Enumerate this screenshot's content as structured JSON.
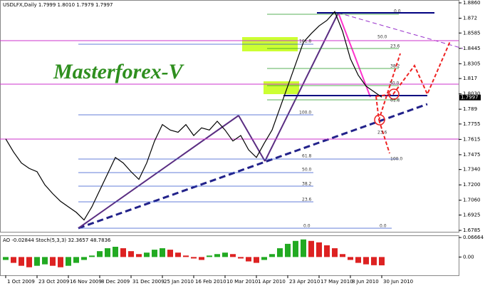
{
  "chart_data": {
    "type": "line",
    "title": "USDLFX,Daily  1.7999 1.8010 1.7979 1.7997",
    "watermark": "Masterforex-V",
    "categories": [
      "1 Oct 2009",
      null,
      null,
      null,
      "23 Oct 2009",
      null,
      null,
      null,
      "16 Nov 2009",
      null,
      null,
      null,
      "8 Dec 2009",
      null,
      null,
      null,
      "31 Dec 2009",
      null,
      null,
      null,
      "25 Jan 2010",
      null,
      null,
      null,
      "16 Feb 2010",
      null,
      null,
      null,
      "10 Mar 2010",
      null,
      null,
      null,
      "1 Apr 2010",
      null,
      null,
      null,
      "23 Apr 2010",
      null,
      null,
      null,
      "17 May 2010",
      null,
      null,
      null,
      "8 Jun 2010",
      null,
      null,
      null,
      "30 Jun 2010"
    ],
    "series": [
      {
        "name": "USDLFX",
        "color": "#000000",
        "values": [
          1.762,
          1.75,
          1.74,
          1.735,
          1.732,
          1.72,
          1.712,
          1.705,
          1.7,
          1.695,
          1.688,
          1.7,
          1.715,
          1.73,
          1.745,
          1.74,
          1.732,
          1.725,
          1.74,
          1.76,
          1.775,
          1.77,
          1.768,
          1.775,
          1.765,
          1.772,
          1.77,
          1.778,
          1.77,
          1.76,
          1.765,
          1.752,
          1.745,
          1.758,
          1.77,
          1.79,
          1.81,
          1.83,
          1.85,
          1.858,
          1.865,
          1.87,
          1.878,
          1.86,
          1.835,
          1.82,
          1.81,
          1.805,
          1.8
        ]
      }
    ],
    "ylim": [
      1.6785,
      1.886
    ],
    "yticks": [
      {
        "value": 1.886,
        "label": "1.8860"
      },
      1.872,
      1.8585,
      1.8445,
      1.8305,
      1.817,
      {
        "value": 1.803,
        "label": "1.8030"
      },
      1.789,
      1.7755,
      1.7615,
      1.7475,
      {
        "value": 1.734,
        "label": "1.7340"
      },
      {
        "value": 1.72,
        "label": "1.7200"
      },
      {
        "value": 1.706,
        "label": "1.7060"
      },
      1.6925,
      1.6785
    ],
    "last_price": 1.7997,
    "fib_labels": [
      "0.0",
      "50.0",
      "161.8",
      "23.6",
      "38.2",
      "50.0",
      "61.8",
      "100.0",
      "23.6",
      "100.0",
      "61.8",
      "50.0",
      "38.2",
      "23.6",
      "0.0",
      "0.0"
    ],
    "indicator": {
      "title": "AO -0.02844  Stoch(5,3,3) 32.3657 48.7836",
      "values": [
        -0.01,
        -0.02,
        -0.03,
        -0.035,
        -0.03,
        -0.025,
        -0.03,
        -0.035,
        -0.03,
        -0.02,
        -0.01,
        0.005,
        0.02,
        0.03,
        0.035,
        0.03,
        0.02,
        0.01,
        0.015,
        0.025,
        0.03,
        0.025,
        0.015,
        0.005,
        -0.005,
        -0.01,
        0.005,
        0.01,
        0.015,
        0.01,
        -0.005,
        -0.015,
        -0.02,
        -0.01,
        0.01,
        0.03,
        0.045,
        0.055,
        0.06,
        0.055,
        0.05,
        0.04,
        0.03,
        0.01,
        -0.01,
        -0.02,
        -0.025,
        -0.028,
        -0.02844
      ],
      "ylim": [
        -0.06,
        0.06664
      ],
      "yticks": [
        0.06664,
        {
          "value": 0,
          "label": "0.00"
        }
      ]
    }
  }
}
